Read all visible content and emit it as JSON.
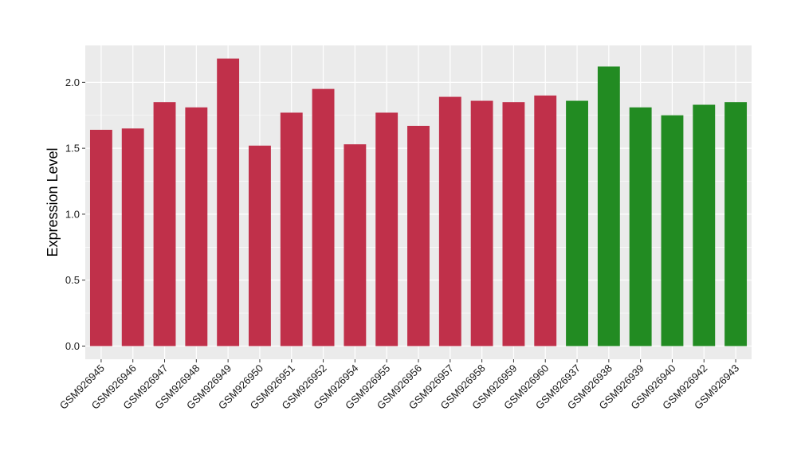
{
  "chart_data": {
    "type": "bar",
    "title": "",
    "xlabel": "",
    "ylabel": "Expression Level",
    "ylim": [
      -0.1,
      2.28
    ],
    "yticks": [
      0.0,
      0.5,
      1.0,
      1.5,
      2.0
    ],
    "ytick_labels": [
      "0.0",
      "0.5",
      "1.0",
      "1.5",
      "2.0"
    ],
    "grid": true,
    "legend": "none",
    "colors": {
      "group_red": "#C0304A",
      "group_green": "#228B22",
      "panel_bg": "#EBEBEB",
      "grid": "#FFFFFF"
    },
    "categories": [
      "GSM926945",
      "GSM926946",
      "GSM926947",
      "GSM926948",
      "GSM926949",
      "GSM926950",
      "GSM926951",
      "GSM926952",
      "GSM926954",
      "GSM926955",
      "GSM926956",
      "GSM926957",
      "GSM926958",
      "GSM926959",
      "GSM926960",
      "GSM926937",
      "GSM926938",
      "GSM926939",
      "GSM926940",
      "GSM926942",
      "GSM926943"
    ],
    "values": [
      1.64,
      1.65,
      1.85,
      1.81,
      2.18,
      1.52,
      1.77,
      1.95,
      1.53,
      1.77,
      1.67,
      1.89,
      1.86,
      1.85,
      1.9,
      1.86,
      2.12,
      1.81,
      1.75,
      1.83,
      1.85
    ],
    "bar_color_keys": [
      "group_red",
      "group_red",
      "group_red",
      "group_red",
      "group_red",
      "group_red",
      "group_red",
      "group_red",
      "group_red",
      "group_red",
      "group_red",
      "group_red",
      "group_red",
      "group_red",
      "group_red",
      "group_green",
      "group_green",
      "group_green",
      "group_green",
      "group_green",
      "group_green"
    ]
  }
}
